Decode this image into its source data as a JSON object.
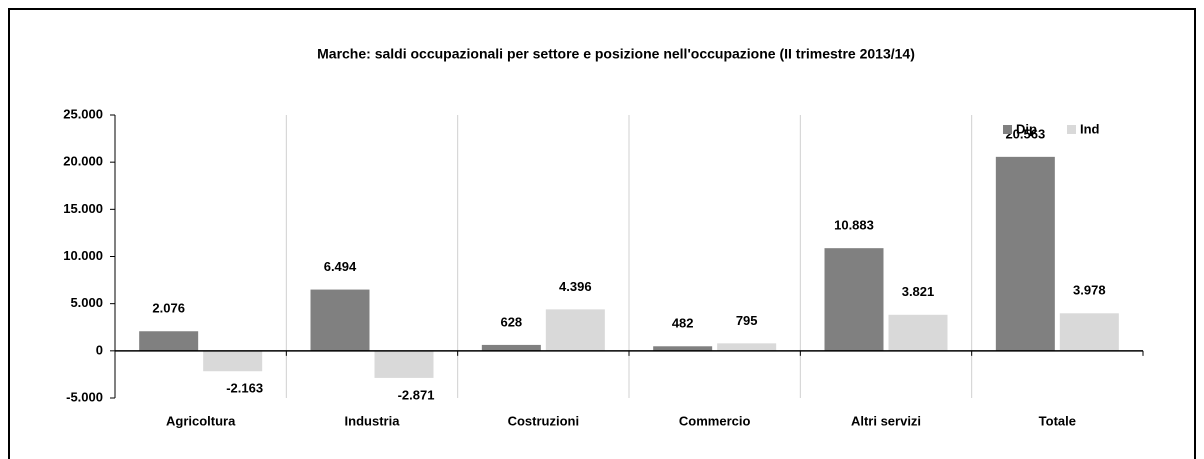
{
  "chart_data": {
    "type": "bar",
    "title": "Marche: saldi occupazionali per settore e posizione nell'occupazione (II trimestre 2013/14)",
    "categories": [
      "Agricoltura",
      "Industria",
      "Costruzioni",
      "Commercio",
      "Altri servizi",
      "Totale"
    ],
    "series": [
      {
        "name": "Dip",
        "color": "#808080",
        "values": [
          2076,
          6494,
          628,
          482,
          10883,
          20563
        ],
        "value_labels": [
          "2.076",
          "6.494",
          "628",
          "482",
          "10.883",
          "20.563"
        ]
      },
      {
        "name": "Ind",
        "color": "#d9d9d9",
        "values": [
          -2163,
          -2871,
          4396,
          795,
          3821,
          3978
        ],
        "value_labels": [
          "-2.163",
          "-2.871",
          "4.396",
          "795",
          "3.821",
          "3.978"
        ]
      }
    ],
    "ylim": [
      -5000,
      25000
    ],
    "yticks": [
      {
        "value": -5000,
        "label": "-5.000"
      },
      0,
      {
        "value": 5000,
        "label": "5.000"
      },
      {
        "value": 10000,
        "label": "10.000"
      },
      {
        "value": 15000,
        "label": "15.000"
      },
      {
        "value": 20000,
        "label": "20.000"
      },
      {
        "value": 25000,
        "label": "25.000"
      }
    ],
    "grid": false,
    "legend": "top-right"
  }
}
